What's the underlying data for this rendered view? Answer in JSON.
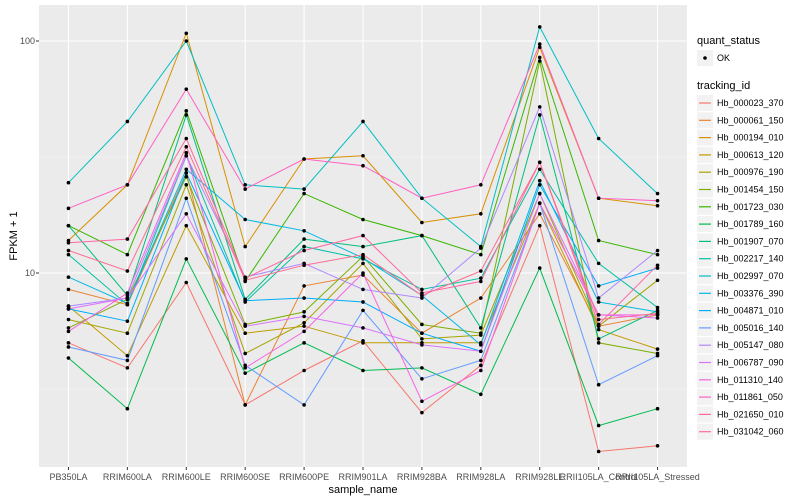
{
  "chart_data": {
    "type": "line",
    "title": "",
    "xlabel": "sample_name",
    "ylabel": "FPKM + 1",
    "yscale": "log10",
    "ylim": [
      1.6,
      120
    ],
    "yticks": [
      10,
      100
    ],
    "ytick_labels": [
      "10 -",
      "100 -"
    ],
    "grid": true,
    "legend_position": "right",
    "categories": [
      "PB350LA",
      "RRIM600LA",
      "RRIM600LE",
      "RRIM600SE",
      "RRIM600PE",
      "RRIM901LA",
      "RRIM928BA",
      "RRIM928LA",
      "RRIM928LE",
      "RRII105LA_Control",
      "RRII105LA_Stressed"
    ],
    "shape_legend": {
      "title": "quant_status",
      "items": [
        {
          "label": "OK"
        }
      ]
    },
    "color_legend_title": "tracking_id",
    "series": [
      {
        "name": "Hb_000023_370",
        "color": "#F8766D",
        "values": [
          5.0,
          3.9,
          9.1,
          2.7,
          3.8,
          5.1,
          2.5,
          4.0,
          16,
          1.7,
          1.8
        ]
      },
      {
        "name": "Hb_000061_150",
        "color": "#EA8331",
        "values": [
          8.5,
          7.3,
          27,
          2.7,
          8.8,
          9.8,
          5.5,
          7.8,
          18,
          5.9,
          6.6
        ]
      },
      {
        "name": "Hb_000194_010",
        "color": "#D89000",
        "values": [
          13.8,
          24,
          108,
          13,
          31,
          32,
          16.5,
          18,
          94,
          21,
          19.5
        ]
      },
      {
        "name": "Hb_000613_120",
        "color": "#C09B00",
        "values": [
          7.2,
          4.4,
          16,
          5.5,
          5.9,
          5.0,
          5.0,
          5.0,
          20,
          5.7,
          4.7
        ]
      },
      {
        "name": "Hb_000976_190",
        "color": "#A3A500",
        "values": [
          6.3,
          5.5,
          24,
          4.5,
          6.1,
          11,
          5.2,
          5.4,
          22,
          5.9,
          9.3
        ]
      },
      {
        "name": "Hb_001454_150",
        "color": "#7CAE00",
        "values": [
          5.8,
          7.7,
          26,
          6.0,
          6.8,
          11.8,
          6.0,
          5.5,
          82,
          5.0,
          4.5
        ]
      },
      {
        "name": "Hb_001723_030",
        "color": "#39B600",
        "values": [
          16,
          12,
          50,
          9.2,
          22,
          17,
          14.5,
          12,
          85,
          13.8,
          12
        ]
      },
      {
        "name": "Hb_001789_160",
        "color": "#00BB4E",
        "values": [
          4.3,
          2.6,
          11.5,
          3.7,
          5.0,
          3.8,
          3.9,
          3.0,
          10.5,
          2.2,
          2.6
        ]
      },
      {
        "name": "Hb_001907_070",
        "color": "#00BF7D",
        "values": [
          16,
          8.0,
          48,
          7.7,
          14,
          13,
          14.5,
          5.8,
          48,
          5.2,
          6.9
        ]
      },
      {
        "name": "Hb_002217_140",
        "color": "#00C1A3",
        "values": [
          12,
          7.3,
          32,
          7.5,
          13,
          11.5,
          8.5,
          9.5,
          28,
          11,
          7.1
        ]
      },
      {
        "name": "Hb_002997_070",
        "color": "#00BFC4",
        "values": [
          24.5,
          45,
          100,
          24,
          23,
          45,
          21,
          13,
          115,
          38,
          22
        ]
      },
      {
        "name": "Hb_003376_390",
        "color": "#00B9E3",
        "values": [
          9.6,
          7.4,
          28,
          17,
          15.2,
          11.6,
          8.0,
          4.9,
          25,
          7.5,
          6.8
        ]
      },
      {
        "name": "Hb_004871_010",
        "color": "#00ADFA",
        "values": [
          7.0,
          6.2,
          27,
          7.6,
          7.8,
          7.5,
          5.5,
          4.6,
          24,
          8.8,
          10.5
        ]
      },
      {
        "name": "Hb_005016_140",
        "color": "#619CFF",
        "values": [
          4.8,
          4.2,
          21,
          4.0,
          2.7,
          6.9,
          3.5,
          4.2,
          20,
          3.3,
          4.4
        ]
      },
      {
        "name": "Hb_005147_080",
        "color": "#AE87FF",
        "values": [
          7.2,
          7.8,
          32,
          9.6,
          11,
          8.5,
          7.8,
          12.8,
          52,
          7.8,
          12.5
        ]
      },
      {
        "name": "Hb_006787_090",
        "color": "#DB72FB",
        "values": [
          7.0,
          7.8,
          18,
          5.9,
          6.5,
          5.8,
          4.9,
          4.6,
          22,
          6.6,
          6.4
        ]
      },
      {
        "name": "Hb_011310_140",
        "color": "#F564E3",
        "values": [
          5.6,
          8.2,
          33,
          3.9,
          5.6,
          10,
          2.8,
          3.8,
          20,
          6.6,
          6.6
        ]
      },
      {
        "name": "Hb_011861_050",
        "color": "#FF61C3",
        "values": [
          19,
          24,
          62,
          23,
          31,
          29,
          21,
          24,
          97,
          21,
          20.5
        ]
      },
      {
        "name": "Hb_021650_010",
        "color": "#FF67A4",
        "values": [
          13.5,
          14,
          38,
          9.5,
          12.5,
          14.5,
          8.2,
          9.2,
          30,
          6.0,
          10.8
        ]
      },
      {
        "name": "Hb_031042_060",
        "color": "#FF6C91",
        "values": [
          12.5,
          10.2,
          35,
          9.3,
          10.8,
          12,
          8.0,
          10.2,
          30,
          6.3,
          6.7
        ]
      }
    ]
  }
}
